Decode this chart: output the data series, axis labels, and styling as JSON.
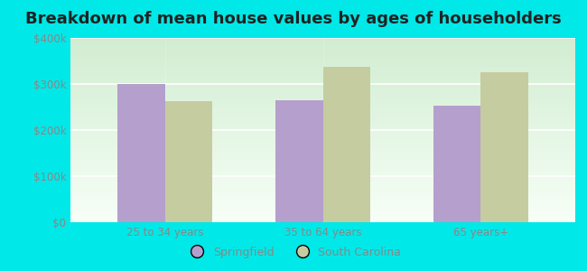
{
  "title": "Breakdown of mean house values by ages of householders",
  "categories": [
    "25 to 34 years",
    "35 to 64 years",
    "65 years+"
  ],
  "springfield_values": [
    300000,
    265000,
    252000
  ],
  "south_carolina_values": [
    262000,
    338000,
    325000
  ],
  "springfield_color": "#b59fcc",
  "south_carolina_color": "#c5cc9f",
  "background_outer": "#00e8e8",
  "background_inner_bottom": "#d4edda",
  "background_inner_top": "#f0faf0",
  "ylim": [
    0,
    400000
  ],
  "yticks": [
    0,
    100000,
    200000,
    300000,
    400000
  ],
  "ytick_labels": [
    "$0",
    "$100k",
    "$200k",
    "$300k",
    "$400k"
  ],
  "legend_labels": [
    "Springfield",
    "South Carolina"
  ],
  "title_fontsize": 13,
  "bar_width": 0.3,
  "tick_color": "#888888"
}
